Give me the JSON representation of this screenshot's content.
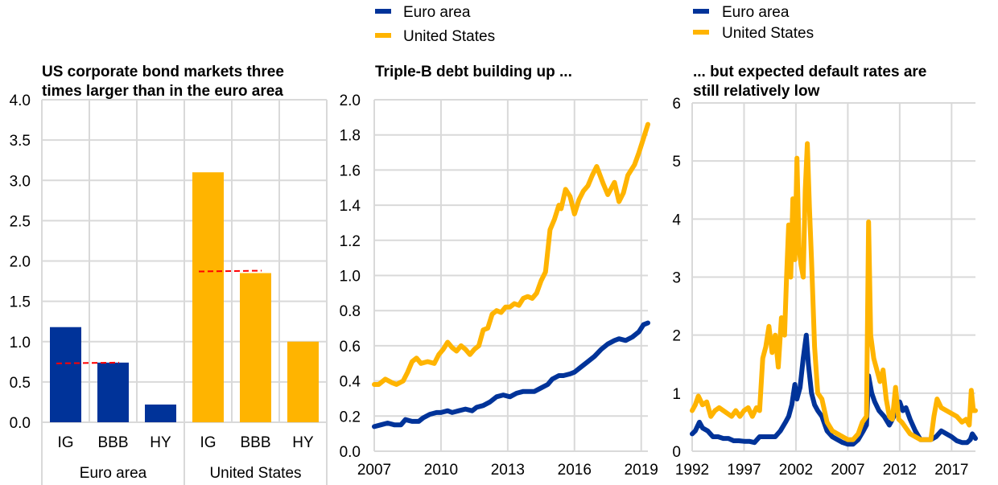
{
  "colors": {
    "euro_area": "#003399",
    "united_states": "#FFB400",
    "reference_line": "#FF0000",
    "grid": "#D9D9D9"
  },
  "legend_middle": [
    {
      "label": "Euro area",
      "color_key": "euro_area"
    },
    {
      "label": "United States",
      "color_key": "united_states"
    }
  ],
  "legend_right": [
    {
      "label": "Euro area",
      "color_key": "euro_area"
    },
    {
      "label": "United States",
      "color_key": "united_states"
    }
  ],
  "chart_data": [
    {
      "type": "bar",
      "title_lines": [
        "US corporate bond markets three",
        "times larger than in the euro area"
      ],
      "xlabel": "",
      "ylabel": "",
      "ylim": [
        0,
        4.0
      ],
      "yticks": [
        "0.0",
        "0.5",
        "1.0",
        "1.5",
        "2.0",
        "2.5",
        "3.0",
        "3.5",
        "4.0"
      ],
      "grid": true,
      "categories": [
        "IG",
        "BBB",
        "HY",
        "IG",
        "BBB",
        "HY"
      ],
      "groups": [
        {
          "label": "Euro area",
          "color_key": "euro_area",
          "categories": [
            "IG",
            "BBB",
            "HY"
          ],
          "values": [
            1.18,
            0.74,
            0.22
          ],
          "reference_value": 0.73
        },
        {
          "label": "United States",
          "color_key": "united_states",
          "categories": [
            "IG",
            "BBB",
            "HY"
          ],
          "values": [
            3.1,
            1.85,
            1.0
          ],
          "reference_value": 1.87
        }
      ],
      "reference_lines": [
        {
          "group": "Euro area",
          "value": 0.73,
          "style": "dashed",
          "span": [
            "IG",
            "BBB"
          ]
        },
        {
          "group": "United States",
          "value": 1.87,
          "style": "dashed",
          "span": [
            "IG",
            "BBB"
          ]
        }
      ]
    },
    {
      "type": "line",
      "title_lines": [
        "Triple-B debt building up ..."
      ],
      "xlabel": "",
      "ylabel": "",
      "xlim": [
        2007.0,
        2019.3
      ],
      "ylim": [
        0,
        2.0
      ],
      "xticks": [
        "2007",
        "2010",
        "2013",
        "2016",
        "2019"
      ],
      "yticks": [
        "0.0",
        "0.2",
        "0.4",
        "0.6",
        "0.8",
        "1.0",
        "1.2",
        "1.4",
        "1.6",
        "1.8",
        "2.0"
      ],
      "grid": true,
      "legend": "top",
      "series": [
        {
          "name": "Euro area",
          "color_key": "euro_area",
          "x": [
            2007.0,
            2007.3,
            2007.6,
            2007.9,
            2008.2,
            2008.4,
            2008.7,
            2009.0,
            2009.2,
            2009.5,
            2009.8,
            2010.0,
            2010.3,
            2010.5,
            2010.8,
            2011.1,
            2011.4,
            2011.6,
            2011.9,
            2012.2,
            2012.5,
            2012.8,
            2013.1,
            2013.4,
            2013.7,
            2013.9,
            2014.2,
            2014.5,
            2014.8,
            2015.0,
            2015.3,
            2015.5,
            2015.8,
            2016.0,
            2016.3,
            2016.6,
            2016.9,
            2017.2,
            2017.5,
            2017.8,
            2018.0,
            2018.3,
            2018.6,
            2018.9,
            2019.1,
            2019.3
          ],
          "values": [
            0.14,
            0.15,
            0.16,
            0.15,
            0.15,
            0.18,
            0.17,
            0.17,
            0.19,
            0.21,
            0.22,
            0.22,
            0.23,
            0.22,
            0.23,
            0.24,
            0.23,
            0.25,
            0.26,
            0.28,
            0.31,
            0.32,
            0.31,
            0.33,
            0.34,
            0.34,
            0.34,
            0.36,
            0.38,
            0.41,
            0.43,
            0.43,
            0.44,
            0.45,
            0.48,
            0.51,
            0.54,
            0.58,
            0.61,
            0.63,
            0.64,
            0.63,
            0.65,
            0.68,
            0.72,
            0.73
          ]
        },
        {
          "name": "United States",
          "color_key": "united_states",
          "x": [
            2007.0,
            2007.2,
            2007.5,
            2007.8,
            2008.0,
            2008.3,
            2008.5,
            2008.7,
            2008.9,
            2009.1,
            2009.4,
            2009.7,
            2009.9,
            2010.1,
            2010.3,
            2010.5,
            2010.7,
            2010.9,
            2011.1,
            2011.3,
            2011.5,
            2011.7,
            2011.9,
            2012.1,
            2012.3,
            2012.5,
            2012.7,
            2012.9,
            2013.1,
            2013.3,
            2013.5,
            2013.7,
            2013.9,
            2014.1,
            2014.3,
            2014.5,
            2014.7,
            2014.9,
            2015.1,
            2015.3,
            2015.4,
            2015.6,
            2015.8,
            2016.0,
            2016.2,
            2016.4,
            2016.6,
            2016.8,
            2017.0,
            2017.3,
            2017.5,
            2017.8,
            2018.0,
            2018.2,
            2018.4,
            2018.7,
            2018.9,
            2019.1,
            2019.3
          ],
          "values": [
            0.38,
            0.38,
            0.41,
            0.39,
            0.38,
            0.4,
            0.45,
            0.51,
            0.53,
            0.5,
            0.51,
            0.5,
            0.55,
            0.58,
            0.62,
            0.59,
            0.57,
            0.6,
            0.58,
            0.55,
            0.58,
            0.6,
            0.69,
            0.7,
            0.78,
            0.8,
            0.79,
            0.82,
            0.82,
            0.84,
            0.83,
            0.87,
            0.88,
            0.87,
            0.9,
            0.97,
            1.02,
            1.26,
            1.32,
            1.4,
            1.38,
            1.49,
            1.45,
            1.35,
            1.43,
            1.48,
            1.51,
            1.57,
            1.62,
            1.52,
            1.46,
            1.53,
            1.42,
            1.47,
            1.57,
            1.63,
            1.7,
            1.78,
            1.86
          ]
        }
      ]
    },
    {
      "type": "line",
      "title_lines": [
        "... but expected  default  rates are",
        "still relatively low"
      ],
      "xlabel": "",
      "ylabel": "",
      "xlim": [
        1992.0,
        2019.3
      ],
      "ylim": [
        0,
        6
      ],
      "xticks": [
        "1992",
        "1997",
        "2002",
        "2007",
        "2012",
        "2017"
      ],
      "yticks": [
        "0",
        "1",
        "2",
        "3",
        "4",
        "5",
        "6"
      ],
      "grid": true,
      "legend": "top",
      "series": [
        {
          "name": "Euro area",
          "color_key": "euro_area",
          "x": [
            1992.0,
            1992.3,
            1992.7,
            1993.0,
            1993.5,
            1994.0,
            1994.5,
            1995.0,
            1995.5,
            1996.0,
            1996.5,
            1997.0,
            1997.5,
            1998.0,
            1998.5,
            1999.0,
            1999.5,
            2000.0,
            2000.5,
            2001.0,
            2001.3,
            2001.6,
            2001.9,
            2002.1,
            2002.4,
            2002.7,
            2003.0,
            2003.2,
            2003.5,
            2003.8,
            2004.1,
            2004.5,
            2005.0,
            2005.5,
            2006.0,
            2006.5,
            2007.0,
            2007.5,
            2008.0,
            2008.5,
            2008.8,
            2009.0,
            2009.3,
            2009.6,
            2010.0,
            2010.5,
            2011.0,
            2011.3,
            2011.7,
            2012.0,
            2012.3,
            2012.6,
            2013.0,
            2013.5,
            2014.0,
            2014.5,
            2015.0,
            2015.5,
            2016.0,
            2016.5,
            2017.0,
            2017.5,
            2018.0,
            2018.5,
            2018.8,
            2019.0,
            2019.3
          ],
          "values": [
            0.3,
            0.35,
            0.5,
            0.4,
            0.35,
            0.25,
            0.25,
            0.22,
            0.22,
            0.18,
            0.18,
            0.17,
            0.17,
            0.15,
            0.25,
            0.25,
            0.25,
            0.25,
            0.35,
            0.5,
            0.6,
            0.8,
            1.15,
            0.9,
            1.1,
            1.6,
            2.0,
            1.5,
            1.0,
            0.8,
            0.7,
            0.6,
            0.35,
            0.25,
            0.2,
            0.15,
            0.12,
            0.12,
            0.2,
            0.35,
            0.45,
            1.3,
            1.0,
            0.85,
            0.7,
            0.6,
            0.45,
            0.55,
            0.7,
            0.85,
            0.7,
            0.75,
            0.55,
            0.35,
            0.2,
            0.2,
            0.2,
            0.25,
            0.35,
            0.3,
            0.25,
            0.18,
            0.15,
            0.15,
            0.2,
            0.3,
            0.22
          ]
        },
        {
          "name": "United States",
          "color_key": "united_states",
          "x": [
            1992.0,
            1992.3,
            1992.6,
            1993.0,
            1993.4,
            1993.8,
            1994.2,
            1994.6,
            1995.0,
            1995.4,
            1995.8,
            1996.2,
            1996.6,
            1997.0,
            1997.4,
            1997.8,
            1998.2,
            1998.5,
            1998.8,
            1999.1,
            1999.4,
            1999.7,
            2000.0,
            2000.3,
            2000.6,
            2000.9,
            2001.1,
            2001.3,
            2001.5,
            2001.7,
            2001.9,
            2002.1,
            2002.3,
            2002.5,
            2002.7,
            2002.9,
            2003.1,
            2003.3,
            2003.5,
            2003.8,
            2004.1,
            2004.5,
            2005.0,
            2005.5,
            2006.0,
            2006.5,
            2007.0,
            2007.5,
            2008.0,
            2008.4,
            2008.8,
            2009.0,
            2009.2,
            2009.5,
            2009.8,
            2010.1,
            2010.4,
            2010.7,
            2011.0,
            2011.3,
            2011.6,
            2011.9,
            2012.2,
            2012.6,
            2013.0,
            2013.5,
            2014.0,
            2014.5,
            2015.0,
            2015.3,
            2015.6,
            2016.0,
            2016.5,
            2017.0,
            2017.5,
            2018.0,
            2018.4,
            2018.7,
            2018.9,
            2019.1,
            2019.3
          ],
          "values": [
            0.7,
            0.8,
            0.95,
            0.8,
            0.85,
            0.6,
            0.7,
            0.75,
            0.7,
            0.65,
            0.6,
            0.7,
            0.6,
            0.7,
            0.75,
            0.6,
            0.75,
            0.7,
            1.6,
            1.8,
            2.15,
            1.7,
            2.0,
            1.45,
            2.3,
            2.0,
            3.0,
            3.9,
            3.0,
            4.35,
            3.3,
            5.05,
            3.5,
            3.2,
            3.0,
            4.5,
            5.3,
            4.2,
            3.3,
            1.8,
            1.0,
            0.9,
            0.5,
            0.35,
            0.3,
            0.25,
            0.2,
            0.2,
            0.3,
            0.5,
            0.6,
            3.95,
            2.0,
            1.6,
            1.4,
            1.2,
            1.4,
            0.9,
            0.6,
            0.55,
            1.1,
            0.55,
            0.5,
            0.4,
            0.3,
            0.25,
            0.2,
            0.2,
            0.2,
            0.6,
            0.9,
            0.75,
            0.7,
            0.65,
            0.6,
            0.5,
            0.55,
            0.45,
            1.05,
            0.7,
            0.7
          ]
        }
      ]
    }
  ]
}
